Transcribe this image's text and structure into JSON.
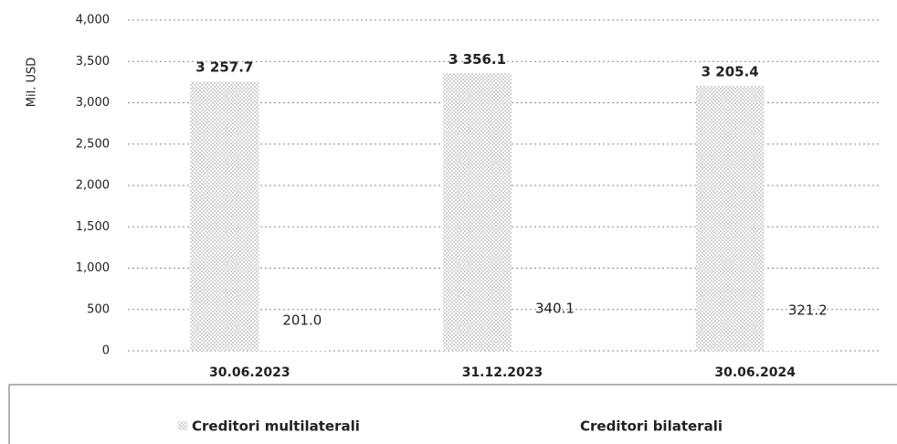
{
  "chart_data": {
    "type": "bar",
    "y_label": "Mil. USD",
    "categories": [
      "30.06.2023",
      "31.12.2023",
      "30.06.2024"
    ],
    "series": [
      {
        "name": "Creditori multilaterali",
        "color": "#9a9a9a",
        "values": [
          3257.7,
          3356.1,
          3205.4
        ],
        "value_labels": [
          "3 257.7",
          "3 356.1",
          "3 205.4"
        ]
      },
      {
        "name": "Creditori bilaterali",
        "color": "#ffffff",
        "values": [
          201.0,
          340.1,
          321.2
        ],
        "value_labels": [
          "201.0",
          "340.1",
          "321.2"
        ]
      }
    ],
    "ylim": [
      0,
      4000
    ],
    "yticks": [
      0,
      500,
      {
        "value": 1000,
        "label": "1,000"
      },
      {
        "value": 1500,
        "label": "1,500"
      },
      {
        "value": 2000,
        "label": "2,000"
      },
      {
        "value": 2500,
        "label": "2,500"
      },
      {
        "value": 3000,
        "label": "3,000"
      },
      {
        "value": 3500,
        "label": "3,500"
      },
      {
        "value": 4000,
        "label": "4,000"
      }
    ],
    "grid": true,
    "legend": "bottom"
  }
}
